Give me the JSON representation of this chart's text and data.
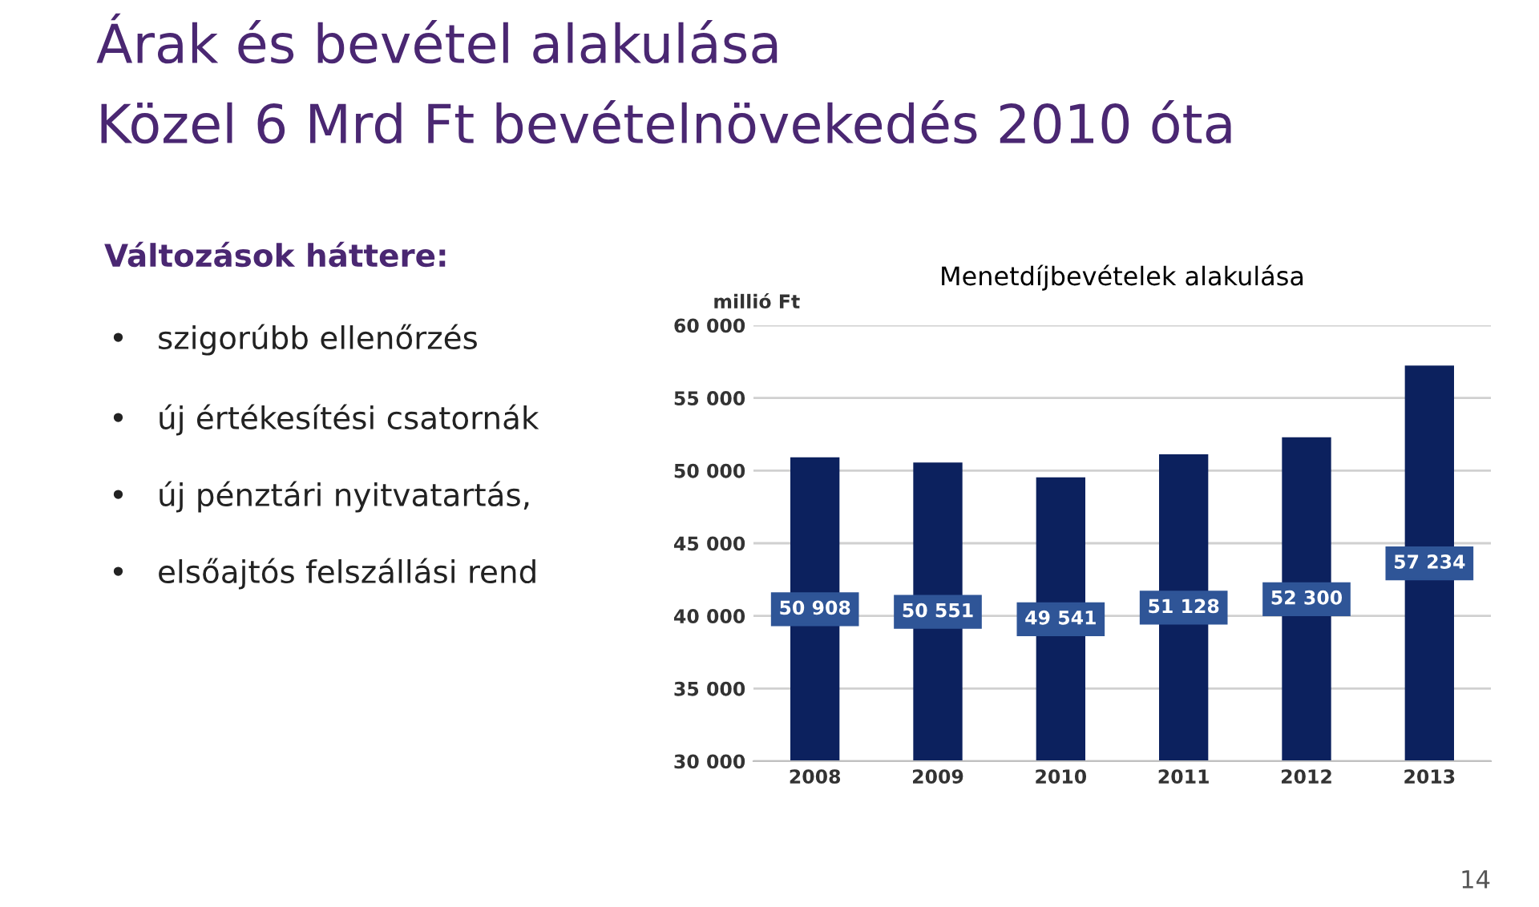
{
  "chart_data": {
    "type": "bar",
    "title": "Menetdíjbevételek alakulása",
    "ylabel": "millió Ft",
    "categories": [
      "2008",
      "2009",
      "2010",
      "2011",
      "2012",
      "2013"
    ],
    "values": [
      50908,
      50551,
      49541,
      51128,
      52300,
      57234
    ],
    "value_labels": [
      "50 908",
      "50 551",
      "49 541",
      "51 128",
      "52 300",
      "57 234"
    ],
    "color": "#0c215e",
    "ylim": [
      30000,
      60000
    ],
    "yticks": [
      {
        "value": 30000,
        "label": "30 000"
      },
      {
        "value": 35000,
        "label": "35 000"
      },
      {
        "value": 40000,
        "label": "40 000"
      },
      {
        "value": 45000,
        "label": "45 000"
      },
      {
        "value": 50000,
        "label": "50 000"
      },
      {
        "value": 55000,
        "label": "55 000"
      },
      {
        "value": 60000,
        "label": "60 000"
      }
    ],
    "grid": "y",
    "annotations": [
      "Árak és bevétel alakulása",
      "Közel 6 Mrd Ft bevételnövekedés 2010 óta",
      "Változások háttere:",
      "•   szigorúbb ellenőrzés",
      "•   új értékesítési csatornák",
      "•   új pénztári nyitvatartás,",
      "•   elsőajtós felszállási rend",
      "14"
    ]
  }
}
